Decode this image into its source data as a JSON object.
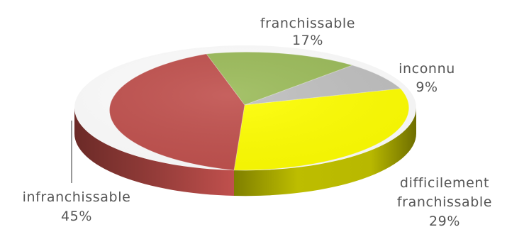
{
  "chart_data": {
    "type": "pie",
    "style": "3d",
    "slices": [
      {
        "label": "franchissable",
        "value": 17,
        "display": "17%",
        "color": "#9bbb59"
      },
      {
        "label": "inconnu",
        "value": 9,
        "display": "9%",
        "color": "#bfbfbf"
      },
      {
        "label": "difficilement franchissable",
        "label_lines": [
          "difficilement",
          "franchissable"
        ],
        "value": 29,
        "display": "29%",
        "color": "#ffff00"
      },
      {
        "label": "infranchissable",
        "value": 45,
        "display": "45%",
        "color": "#c0504d"
      }
    ]
  }
}
